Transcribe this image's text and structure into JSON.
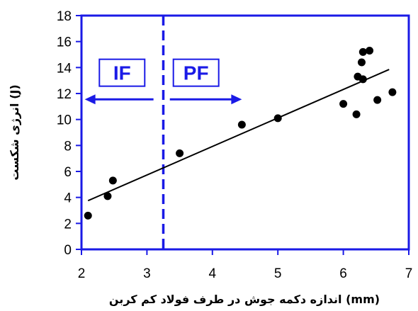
{
  "chart_data": {
    "type": "scatter",
    "title": "",
    "xlabel": "اندازه دکمه جوش در طرف فولاد کم کربن (mm)",
    "ylabel": "انرژی شکست (J)",
    "xlim": [
      2,
      7
    ],
    "ylim": [
      0,
      18
    ],
    "xticks": [
      2,
      3,
      4,
      5,
      6,
      7
    ],
    "yticks": [
      0,
      2,
      4,
      6,
      8,
      10,
      12,
      14,
      16,
      18
    ],
    "grid": false,
    "points": [
      {
        "x": 2.1,
        "y": 2.6
      },
      {
        "x": 2.4,
        "y": 4.1
      },
      {
        "x": 2.48,
        "y": 5.3
      },
      {
        "x": 3.5,
        "y": 7.4
      },
      {
        "x": 4.45,
        "y": 9.6
      },
      {
        "x": 5.0,
        "y": 10.1
      },
      {
        "x": 6.0,
        "y": 11.2
      },
      {
        "x": 6.2,
        "y": 10.4
      },
      {
        "x": 6.22,
        "y": 13.3
      },
      {
        "x": 6.28,
        "y": 14.4
      },
      {
        "x": 6.3,
        "y": 13.1
      },
      {
        "x": 6.3,
        "y": 15.2
      },
      {
        "x": 6.4,
        "y": 15.3
      },
      {
        "x": 6.52,
        "y": 11.5
      },
      {
        "x": 6.75,
        "y": 12.1
      }
    ],
    "trendline": {
      "x": [
        2.1,
        6.7
      ],
      "y": [
        3.75,
        13.85
      ]
    },
    "divider_x": 3.25,
    "regions": [
      {
        "label": "IF",
        "label_x": 2.62,
        "label_y": 13.6,
        "arrow_from": 3.1,
        "arrow_to": 2.05,
        "arrow_y": 11.55
      },
      {
        "label": "PF",
        "label_x": 3.75,
        "label_y": 13.6,
        "arrow_from": 3.35,
        "arrow_to": 4.45,
        "arrow_y": 11.55
      }
    ],
    "colors": {
      "axis": "#1a1ae6",
      "divider": "#1a1ae6",
      "arrow": "#1a1ae6",
      "points": "#000000",
      "trendline": "#000000"
    }
  }
}
